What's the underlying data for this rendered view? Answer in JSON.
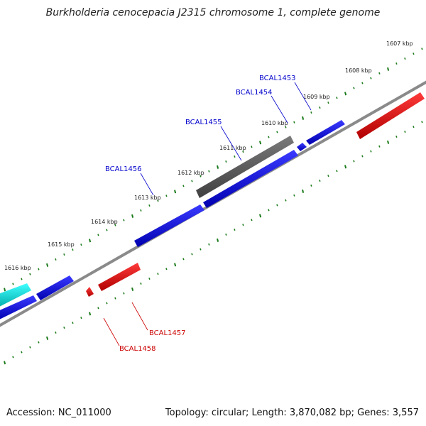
{
  "title": "Burkholderia cenocepacia J2315 chromosome 1, complete genome",
  "accession": "Accession: NC_011000",
  "topology": "Topology: circular; Length: 3,870,082 bp; Genes: 3,557",
  "scale_labels": [
    "1607 kbp",
    "1608 kbp",
    "1609 kbp",
    "1610 kbp",
    "1611 kbp",
    "1612 kbp",
    "1613 kbp",
    "1614 kbp",
    "1615 kbp",
    "1616 kbp"
  ],
  "gene_labels": [
    {
      "text": "BCAL1453",
      "color": "#0000cc"
    },
    {
      "text": "BCAL1454",
      "color": "#0000cc"
    },
    {
      "text": "BCAL1455",
      "color": "#0000cc"
    },
    {
      "text": "BCAL1456",
      "color": "#0000cc"
    },
    {
      "text": "BCAL1457",
      "color": "#cc0000"
    },
    {
      "text": "BCAL1458",
      "color": "#cc0000"
    }
  ],
  "colors": {
    "forward_cds": "#0000ee",
    "reverse_cds": "#ee0000",
    "gray_feature": "#666666",
    "cyan_feature": "#00dddd",
    "backbone": "#8a8a8a",
    "ticks": "#1a7a1a"
  }
}
